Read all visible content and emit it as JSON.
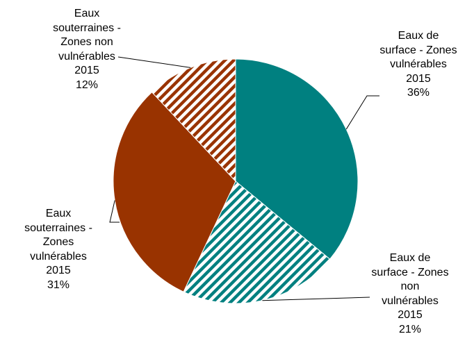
{
  "chart_data": {
    "type": "pie",
    "categories": [
      "Eaux de surface - Zones vulnérables 2015",
      "Eaux de surface - Zones non vulnérables 2015",
      "Eaux souterraines - Zones vulnérables 2015",
      "Eaux souterraines - Zones non vulnérables 2015"
    ],
    "values": [
      36,
      21,
      31,
      12
    ],
    "value_labels": [
      "36%",
      "21%",
      "31%",
      "12%"
    ],
    "colors": [
      "#008080",
      "#008080",
      "#993300",
      "#993300"
    ],
    "patterns": [
      "solid",
      "hatch",
      "solid",
      "hatch"
    ]
  }
}
